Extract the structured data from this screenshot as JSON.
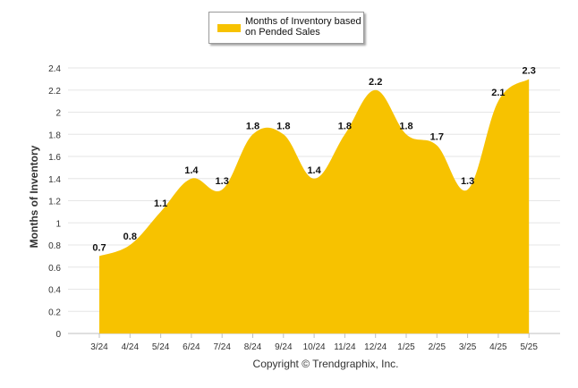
{
  "colors": {
    "fill": "#F7C200",
    "grid": "#e6e6e6",
    "axis": "#bfbfbf",
    "text": "#333333"
  },
  "legend": {
    "label": "Months of Inventory based on Pended Sales"
  },
  "footer": {
    "copyright": "Copyright © Trendgraphix, Inc."
  },
  "chart_data": {
    "type": "area",
    "title": "",
    "ylabel": "Months of Inventory",
    "xlabel": "",
    "categories": [
      "3/24",
      "4/24",
      "5/24",
      "6/24",
      "7/24",
      "8/24",
      "9/24",
      "10/24",
      "11/24",
      "12/24",
      "1/25",
      "2/25",
      "3/25",
      "4/25",
      "5/25"
    ],
    "series": [
      {
        "name": "Months of Inventory based on Pended Sales",
        "values": [
          0.7,
          0.8,
          1.1,
          1.4,
          1.3,
          1.8,
          1.8,
          1.4,
          1.8,
          2.2,
          1.8,
          1.7,
          1.3,
          2.1,
          2.3
        ]
      }
    ],
    "ylim": [
      0,
      2.4
    ],
    "yticks": [
      0,
      0.2,
      0.4,
      0.6,
      0.8,
      1,
      1.2,
      1.4,
      1.6,
      1.8,
      2,
      2.2,
      2.4
    ],
    "ytick_labels": [
      "0",
      "0.2",
      "0.4",
      "0.6",
      "0.8",
      "1",
      "1.2",
      "1.4",
      "1.6",
      "1.8",
      "2",
      "2.2",
      "2.4"
    ],
    "data_labels": [
      "0.7",
      "0.8",
      "1.1",
      "1.4",
      "1.3",
      "1.8",
      "1.8",
      "1.4",
      "1.8",
      "2.2",
      "1.8",
      "1.7",
      "1.3",
      "2.1",
      "2.3"
    ],
    "grid": true,
    "legend_position": "top-center"
  }
}
